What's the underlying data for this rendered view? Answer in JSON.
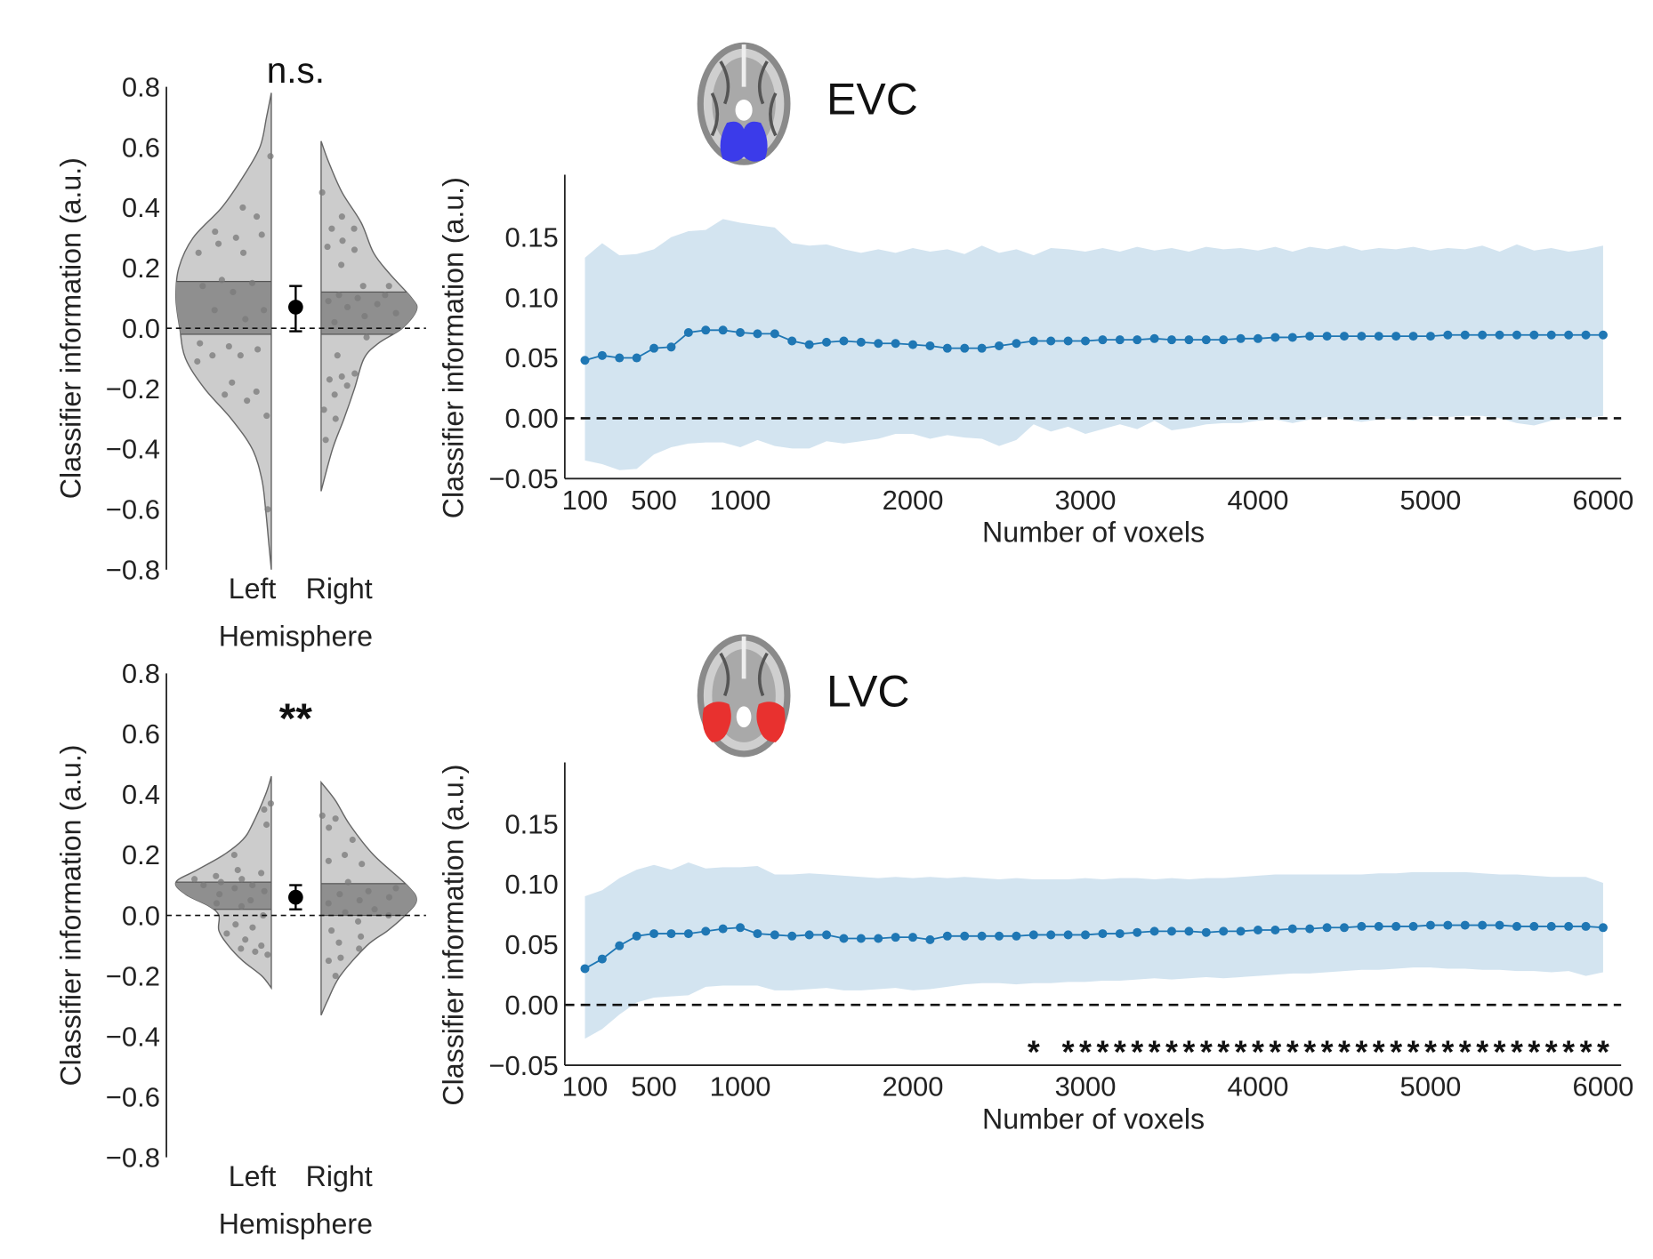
{
  "chart_data": [
    {
      "type": "violin",
      "id": "evc-violin",
      "significance": "n.s.",
      "ylabel": "Classifier information (a.u.)",
      "xlabel": "Hemisphere",
      "categories": [
        "Left",
        "Right"
      ],
      "ylim": [
        -0.8,
        0.8
      ],
      "yticks": [
        0.8,
        0.6,
        0.4,
        0.2,
        0.0,
        -0.2,
        -0.4,
        -0.6,
        -0.8
      ],
      "ytick_labels": [
        "0.8",
        "0.6",
        "0.4",
        "0.2",
        "0.0",
        "−0.2",
        "−0.4",
        "−0.6",
        "−0.8"
      ],
      "reference_line": 0,
      "difference": {
        "mean": 0.07,
        "ci": [
          -0.01,
          0.14
        ]
      },
      "sides": [
        {
          "name": "Left",
          "quartile_band": [
            -0.02,
            0.155
          ],
          "density": [
            [
              0.78,
              0
            ],
            [
              0.7,
              0.05
            ],
            [
              0.6,
              0.12
            ],
            [
              0.5,
              0.3
            ],
            [
              0.4,
              0.52
            ],
            [
              0.3,
              0.82
            ],
            [
              0.2,
              0.97
            ],
            [
              0.1,
              1.0
            ],
            [
              0.0,
              0.96
            ],
            [
              -0.1,
              0.9
            ],
            [
              -0.2,
              0.7
            ],
            [
              -0.3,
              0.42
            ],
            [
              -0.4,
              0.2
            ],
            [
              -0.5,
              0.1
            ],
            [
              -0.6,
              0.06
            ],
            [
              -0.7,
              0.03
            ],
            [
              -0.8,
              0
            ]
          ],
          "points": [
            0.57,
            0.4,
            0.37,
            0.32,
            0.3,
            0.31,
            0.28,
            0.25,
            0.25,
            0.16,
            0.15,
            0.14,
            0.12,
            0.06,
            0.06,
            0.03,
            -0.05,
            -0.06,
            -0.07,
            -0.09,
            -0.09,
            -0.11,
            -0.18,
            -0.21,
            -0.22,
            -0.24,
            -0.29,
            -0.6
          ]
        },
        {
          "name": "Right",
          "quartile_band": [
            -0.02,
            0.12
          ],
          "density": [
            [
              0.62,
              0
            ],
            [
              0.55,
              0.08
            ],
            [
              0.45,
              0.22
            ],
            [
              0.35,
              0.42
            ],
            [
              0.25,
              0.55
            ],
            [
              0.18,
              0.72
            ],
            [
              0.1,
              0.95
            ],
            [
              0.06,
              1.0
            ],
            [
              0.0,
              0.85
            ],
            [
              -0.05,
              0.6
            ],
            [
              -0.1,
              0.45
            ],
            [
              -0.2,
              0.35
            ],
            [
              -0.3,
              0.24
            ],
            [
              -0.4,
              0.12
            ],
            [
              -0.54,
              0
            ]
          ],
          "points": [
            0.45,
            0.37,
            0.33,
            0.33,
            0.29,
            0.27,
            0.26,
            0.21,
            0.14,
            0.14,
            0.11,
            0.11,
            0.1,
            0.09,
            0.08,
            0.07,
            0.05,
            0.04,
            0.02,
            -0.03,
            -0.09,
            -0.15,
            -0.16,
            -0.17,
            -0.19,
            -0.22,
            -0.27,
            -0.3,
            -0.37
          ]
        }
      ]
    },
    {
      "type": "line",
      "id": "evc-line",
      "title": "EVC",
      "xlabel": "Number of voxels",
      "ylabel": "Classifier information (a.u.)",
      "xlim": [
        100,
        6000
      ],
      "ylim": [
        -0.05,
        0.2
      ],
      "xticks": [
        100,
        500,
        1000,
        2000,
        3000,
        4000,
        5000,
        6000
      ],
      "xtick_labels": [
        "100",
        "500",
        "1000",
        "2000",
        "3000",
        "4000",
        "5000",
        "6000"
      ],
      "yticks": [
        0.15,
        0.1,
        0.05,
        0.0,
        -0.05
      ],
      "ytick_labels": [
        "0.15",
        "0.10",
        "0.05",
        "0.00",
        "−0.05"
      ],
      "reference_line": 0,
      "x_start": 100,
      "x_step": 100,
      "series": [
        {
          "name": "mean",
          "color": "#1f77b4",
          "values": [
            0.048,
            0.052,
            0.05,
            0.05,
            0.058,
            0.059,
            0.071,
            0.073,
            0.073,
            0.071,
            0.07,
            0.07,
            0.064,
            0.061,
            0.063,
            0.064,
            0.063,
            0.062,
            0.062,
            0.061,
            0.06,
            0.058,
            0.058,
            0.058,
            0.06,
            0.062,
            0.064,
            0.064,
            0.064,
            0.064,
            0.065,
            0.065,
            0.065,
            0.066,
            0.065,
            0.065,
            0.065,
            0.065,
            0.066,
            0.066,
            0.067,
            0.067,
            0.068,
            0.068,
            0.068,
            0.068,
            0.068,
            0.068,
            0.068,
            0.068,
            0.069,
            0.069,
            0.069,
            0.069,
            0.069,
            0.069,
            0.069,
            0.069,
            0.069,
            0.069
          ],
          "upper": [
            0.133,
            0.145,
            0.135,
            0.136,
            0.14,
            0.15,
            0.155,
            0.156,
            0.165,
            0.162,
            0.16,
            0.158,
            0.145,
            0.143,
            0.144,
            0.14,
            0.137,
            0.14,
            0.137,
            0.141,
            0.138,
            0.14,
            0.136,
            0.143,
            0.137,
            0.14,
            0.135,
            0.141,
            0.14,
            0.138,
            0.141,
            0.138,
            0.142,
            0.139,
            0.141,
            0.138,
            0.142,
            0.14,
            0.141,
            0.139,
            0.142,
            0.138,
            0.142,
            0.14,
            0.143,
            0.139,
            0.141,
            0.14,
            0.142,
            0.139,
            0.141,
            0.14,
            0.143,
            0.138,
            0.144,
            0.139,
            0.141,
            0.138,
            0.14,
            0.143
          ],
          "lower": [
            -0.035,
            -0.038,
            -0.043,
            -0.042,
            -0.03,
            -0.024,
            -0.021,
            -0.02,
            -0.02,
            -0.024,
            -0.018,
            -0.023,
            -0.025,
            -0.025,
            -0.019,
            -0.021,
            -0.019,
            -0.017,
            -0.013,
            -0.013,
            -0.017,
            -0.014,
            -0.016,
            -0.017,
            -0.023,
            -0.018,
            -0.005,
            -0.011,
            -0.007,
            -0.013,
            -0.009,
            -0.005,
            -0.009,
            -0.002,
            -0.01,
            -0.008,
            -0.005,
            -0.004,
            -0.004,
            -0.002,
            -0.001,
            -0.004,
            -0.001,
            0.001,
            -0.001,
            -0.003,
            -0.001,
            0.0,
            -0.002,
            0.002,
            0.001,
            0.002,
            0.002,
            0.0,
            -0.004,
            -0.006,
            -0.002,
            0.0,
            0.0,
            0.002
          ]
        }
      ],
      "band_color": "#d3e4f0",
      "roi_color": "#3b3bea",
      "significant_x": []
    },
    {
      "type": "violin",
      "id": "lvc-violin",
      "significance": "**",
      "ylabel": "Classifier information (a.u.)",
      "xlabel": "Hemisphere",
      "categories": [
        "Left",
        "Right"
      ],
      "ylim": [
        -0.8,
        0.8
      ],
      "yticks": [
        0.8,
        0.6,
        0.4,
        0.2,
        0.0,
        -0.2,
        -0.4,
        -0.6,
        -0.8
      ],
      "ytick_labels": [
        "0.8",
        "0.6",
        "0.4",
        "0.2",
        "0.0",
        "−0.2",
        "−0.4",
        "−0.6",
        "−0.8"
      ],
      "reference_line": 0,
      "difference": {
        "mean": 0.06,
        "ci": [
          0.02,
          0.1
        ]
      },
      "sides": [
        {
          "name": "Left",
          "quartile_band": [
            0.02,
            0.11
          ],
          "density": [
            [
              0.46,
              0
            ],
            [
              0.4,
              0.06
            ],
            [
              0.3,
              0.2
            ],
            [
              0.25,
              0.3
            ],
            [
              0.2,
              0.5
            ],
            [
              0.15,
              0.78
            ],
            [
              0.11,
              1.0
            ],
            [
              0.07,
              0.9
            ],
            [
              0.03,
              0.65
            ],
            [
              0.0,
              0.55
            ],
            [
              -0.05,
              0.55
            ],
            [
              -0.1,
              0.45
            ],
            [
              -0.15,
              0.3
            ],
            [
              -0.2,
              0.1
            ],
            [
              -0.24,
              0
            ]
          ],
          "points": [
            0.37,
            0.35,
            0.3,
            0.2,
            0.15,
            0.14,
            0.13,
            0.12,
            0.12,
            0.11,
            0.1,
            0.1,
            0.09,
            0.08,
            0.07,
            0.05,
            0.04,
            0.03,
            0.0,
            -0.03,
            -0.04,
            -0.06,
            -0.08,
            -0.1,
            -0.11,
            -0.12,
            -0.13
          ]
        },
        {
          "name": "Right",
          "quartile_band": [
            0.0,
            0.105
          ],
          "density": [
            [
              0.44,
              0
            ],
            [
              0.38,
              0.15
            ],
            [
              0.3,
              0.3
            ],
            [
              0.2,
              0.55
            ],
            [
              0.1,
              0.9
            ],
            [
              0.05,
              1.0
            ],
            [
              0.0,
              0.88
            ],
            [
              -0.05,
              0.7
            ],
            [
              -0.1,
              0.48
            ],
            [
              -0.2,
              0.2
            ],
            [
              -0.28,
              0.07
            ],
            [
              -0.33,
              0
            ]
          ],
          "points": [
            0.33,
            0.32,
            0.29,
            0.25,
            0.2,
            0.18,
            0.17,
            0.11,
            0.09,
            0.08,
            0.07,
            0.06,
            0.05,
            0.04,
            0.02,
            0.01,
            0.0,
            -0.02,
            -0.05,
            -0.07,
            -0.09,
            -0.11,
            -0.14,
            -0.15,
            -0.2
          ]
        }
      ]
    },
    {
      "type": "line",
      "id": "lvc-line",
      "title": "LVC",
      "xlabel": "Number of voxels",
      "ylabel": "Classifier information (a.u.)",
      "xlim": [
        100,
        6000
      ],
      "ylim": [
        -0.05,
        0.2
      ],
      "xticks": [
        100,
        500,
        1000,
        2000,
        3000,
        4000,
        5000,
        6000
      ],
      "xtick_labels": [
        "100",
        "500",
        "1000",
        "2000",
        "3000",
        "4000",
        "5000",
        "6000"
      ],
      "yticks": [
        0.15,
        0.1,
        0.05,
        0.0,
        -0.05
      ],
      "ytick_labels": [
        "0.15",
        "0.10",
        "0.05",
        "0.00",
        "−0.05"
      ],
      "reference_line": 0,
      "x_start": 100,
      "x_step": 100,
      "series": [
        {
          "name": "mean",
          "color": "#1f77b4",
          "values": [
            0.03,
            0.038,
            0.049,
            0.057,
            0.059,
            0.059,
            0.059,
            0.061,
            0.063,
            0.064,
            0.059,
            0.058,
            0.057,
            0.058,
            0.058,
            0.055,
            0.055,
            0.055,
            0.056,
            0.056,
            0.054,
            0.057,
            0.057,
            0.057,
            0.057,
            0.057,
            0.058,
            0.058,
            0.058,
            0.058,
            0.059,
            0.059,
            0.06,
            0.061,
            0.061,
            0.061,
            0.06,
            0.061,
            0.061,
            0.062,
            0.062,
            0.063,
            0.063,
            0.064,
            0.064,
            0.065,
            0.065,
            0.065,
            0.065,
            0.066,
            0.066,
            0.066,
            0.066,
            0.066,
            0.065,
            0.065,
            0.065,
            0.065,
            0.065,
            0.064
          ],
          "upper": [
            0.09,
            0.095,
            0.105,
            0.112,
            0.116,
            0.112,
            0.118,
            0.113,
            0.114,
            0.114,
            0.115,
            0.108,
            0.108,
            0.109,
            0.108,
            0.107,
            0.106,
            0.105,
            0.106,
            0.105,
            0.106,
            0.105,
            0.106,
            0.105,
            0.104,
            0.105,
            0.104,
            0.104,
            0.104,
            0.105,
            0.104,
            0.105,
            0.105,
            0.104,
            0.105,
            0.104,
            0.105,
            0.105,
            0.106,
            0.107,
            0.108,
            0.108,
            0.108,
            0.108,
            0.108,
            0.108,
            0.109,
            0.109,
            0.11,
            0.11,
            0.11,
            0.11,
            0.109,
            0.108,
            0.108,
            0.107,
            0.106,
            0.106,
            0.106,
            0.101
          ],
          "lower": [
            -0.028,
            -0.02,
            -0.008,
            0.002,
            0.006,
            0.007,
            0.008,
            0.015,
            0.016,
            0.016,
            0.016,
            0.012,
            0.012,
            0.013,
            0.014,
            0.012,
            0.012,
            0.013,
            0.014,
            0.012,
            0.013,
            0.015,
            0.017,
            0.018,
            0.018,
            0.017,
            0.018,
            0.018,
            0.019,
            0.019,
            0.02,
            0.02,
            0.021,
            0.022,
            0.021,
            0.022,
            0.023,
            0.022,
            0.023,
            0.024,
            0.025,
            0.026,
            0.026,
            0.027,
            0.028,
            0.029,
            0.029,
            0.03,
            0.031,
            0.031,
            0.03,
            0.03,
            0.029,
            0.029,
            0.028,
            0.028,
            0.027,
            0.028,
            0.024,
            0.027
          ]
        }
      ],
      "band_color": "#d3e4f0",
      "roi_color": "#e8312f",
      "significance_marker": "*",
      "significant_x": [
        2700,
        2900,
        3000,
        3100,
        3200,
        3300,
        3400,
        3500,
        3600,
        3700,
        3800,
        3900,
        4000,
        4100,
        4200,
        4300,
        4400,
        4500,
        4600,
        4700,
        4800,
        4900,
        5000,
        5100,
        5200,
        5300,
        5400,
        5500,
        5600,
        5700,
        5800,
        5900,
        6000
      ]
    }
  ]
}
